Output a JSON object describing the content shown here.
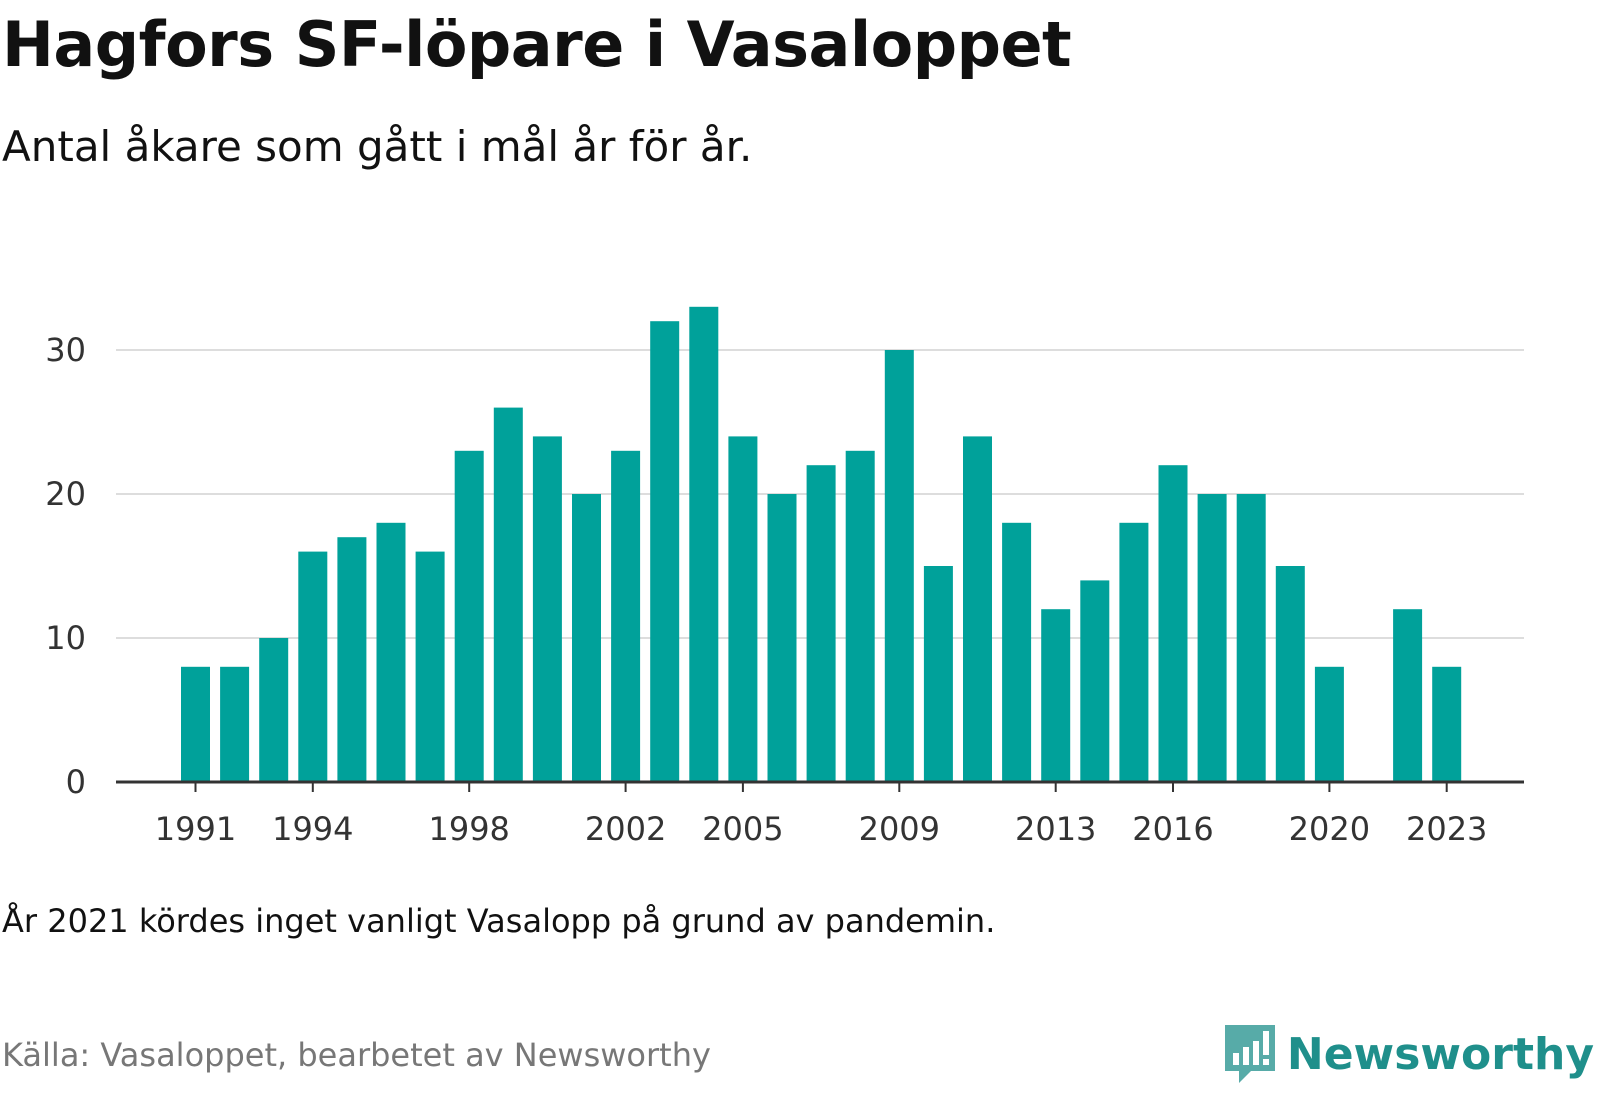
{
  "title": "Hagfors SF-löpare i Vasaloppet",
  "subtitle": "Antal åkare som gått i mål år för år.",
  "note": "År 2021 kördes inget vanligt Vasalopp på grund av pandemin.",
  "source": "Källa: Vasaloppet, bearbetet av Newsworthy",
  "brand": {
    "name": "Newsworthy",
    "icon": "newsworthy-logo-icon",
    "color": "#1f8f8b"
  },
  "colors": {
    "bar": "#00a19a",
    "grid": "#dddddd",
    "axis": "#333333"
  },
  "chart_data": {
    "type": "bar",
    "title": "Hagfors SF-löpare i Vasaloppet",
    "xlabel": "",
    "ylabel": "",
    "ylim": [
      0,
      35
    ],
    "grid": true,
    "yticks": [
      0,
      10,
      20,
      30
    ],
    "xticks": [
      1991,
      1994,
      1998,
      2002,
      2005,
      2009,
      2013,
      2016,
      2020,
      2023
    ],
    "categories": [
      1991,
      1992,
      1993,
      1994,
      1995,
      1996,
      1997,
      1998,
      1999,
      2000,
      2001,
      2002,
      2003,
      2004,
      2005,
      2006,
      2007,
      2008,
      2009,
      2010,
      2011,
      2012,
      2013,
      2014,
      2015,
      2016,
      2017,
      2018,
      2019,
      2020,
      2021,
      2022,
      2023
    ],
    "values": [
      8,
      8,
      10,
      16,
      17,
      18,
      16,
      23,
      26,
      24,
      20,
      23,
      32,
      33,
      24,
      20,
      22,
      23,
      30,
      15,
      24,
      18,
      12,
      14,
      18,
      22,
      20,
      20,
      15,
      8,
      null,
      12,
      8
    ]
  }
}
